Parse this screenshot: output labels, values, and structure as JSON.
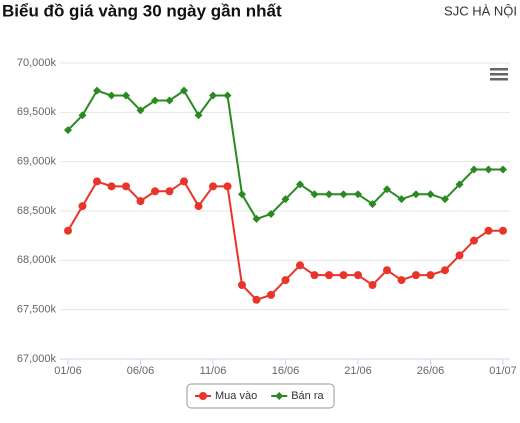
{
  "chart_data": {
    "type": "line",
    "title": "Biểu đồ giá vàng 30 ngày gần nhất",
    "subtitle": "SJC HÀ NỘI",
    "categories": [
      "01/06",
      null,
      null,
      null,
      null,
      "06/06",
      null,
      null,
      null,
      null,
      "11/06",
      null,
      null,
      null,
      null,
      "16/06",
      null,
      null,
      null,
      null,
      "21/06",
      null,
      null,
      null,
      null,
      "26/06",
      null,
      null,
      null,
      null,
      "01/07"
    ],
    "series": [
      {
        "name": "Mua vào",
        "color": "#e8352a",
        "marker": "circle",
        "values": [
          68300,
          68550,
          68800,
          68750,
          68750,
          68600,
          68700,
          68700,
          68800,
          68550,
          68750,
          68750,
          67750,
          67600,
          67650,
          67800,
          67950,
          67850,
          67850,
          67850,
          67850,
          67750,
          67900,
          67800,
          67850,
          67850,
          67900,
          68050,
          68200,
          68300,
          68300
        ]
      },
      {
        "name": "Bán ra",
        "color": "#2a8a22",
        "marker": "diamond",
        "values": [
          69320,
          69470,
          69720,
          69670,
          69670,
          69520,
          69620,
          69620,
          69720,
          69470,
          69670,
          69670,
          68670,
          68420,
          68470,
          68620,
          68770,
          68670,
          68670,
          68670,
          68670,
          68570,
          68720,
          68620,
          68670,
          68670,
          68620,
          68770,
          68920,
          68920,
          68920
        ]
      }
    ],
    "ylim": [
      67000,
      70000
    ],
    "yticks": [
      {
        "value": 67000,
        "label": "67,000k"
      },
      {
        "value": 67500,
        "label": "67,500k"
      },
      {
        "value": 68000,
        "label": "68,000k"
      },
      {
        "value": 68500,
        "label": "68,500k"
      },
      {
        "value": 69000,
        "label": "69,000k"
      },
      {
        "value": 69500,
        "label": "69,500k"
      },
      {
        "value": 70000,
        "label": "70,000k"
      }
    ],
    "grid": true,
    "legend": "bottom"
  }
}
